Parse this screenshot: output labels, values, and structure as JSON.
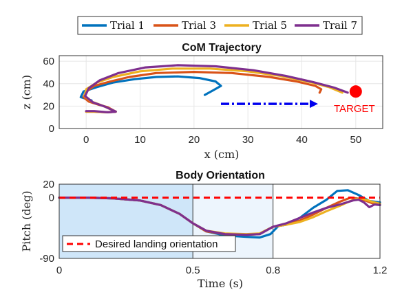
{
  "legend_top": [
    {
      "label": "Trial 1",
      "color": "#0072BD"
    },
    {
      "label": "Trial 3",
      "color": "#D95319"
    },
    {
      "label": "Trial 5",
      "color": "#EDB120"
    },
    {
      "label": "Trail 7",
      "color": "#7E2F8E"
    }
  ],
  "colors": {
    "trial1": "#0072BD",
    "trial3": "#D95319",
    "trial5": "#EDB120",
    "trial7": "#7E2F8E",
    "target": "#FF0000",
    "arrow": "#0000EE",
    "desired": "#FF0000"
  },
  "chart_data": [
    {
      "type": "line",
      "title": "CoM Trajectory",
      "xlabel": "x (cm)",
      "ylabel": "z (cm)",
      "xlim": [
        -5,
        55
      ],
      "ylim": [
        0,
        65
      ],
      "xticks": [
        "0",
        "10",
        "20",
        "30",
        "40",
        "50"
      ],
      "yticks": [
        "0",
        "20",
        "40",
        "60"
      ],
      "grid": true,
      "series": [
        {
          "name": "Trial 1",
          "color": "#0072BD",
          "x": [
            22,
            23.5,
            25,
            24,
            21,
            17,
            13,
            9,
            5,
            2,
            -0.5,
            -1,
            1
          ],
          "y": [
            30,
            34,
            38,
            42,
            45,
            46.5,
            46,
            44,
            41,
            37,
            33,
            28,
            25
          ]
        },
        {
          "name": "Trial 3",
          "color": "#D95319",
          "x": [
            43.3,
            43.6,
            42.5,
            39,
            34,
            27,
            20,
            13,
            8,
            4.5,
            1.5,
            0,
            -0.5,
            0.5,
            2.5,
            4,
            5.5,
            4,
            1.5,
            0
          ],
          "y": [
            32,
            35,
            38,
            42,
            46,
            49.5,
            50.5,
            49.5,
            46,
            42,
            38,
            33,
            28,
            24,
            21,
            19,
            15,
            14.5,
            15,
            15
          ]
        },
        {
          "name": "Trial 5",
          "color": "#EDB120",
          "x": [
            47.5,
            45,
            41,
            36,
            30,
            23,
            16,
            10,
            5,
            2,
            0,
            -0.3,
            1,
            3,
            5.5,
            4,
            1.5,
            0
          ],
          "y": [
            32,
            37,
            42,
            47,
            51,
            53.5,
            53.5,
            51,
            46,
            41,
            35,
            29,
            24,
            20.5,
            15,
            14.5,
            15,
            15
          ]
        },
        {
          "name": "Trail 7",
          "color": "#7E2F8E",
          "x": [
            48.5,
            46,
            42,
            37,
            31,
            24,
            17,
            11,
            6,
            2.5,
            0.5,
            -0.2,
            1.2,
            3.5,
            5.5,
            4,
            1.5,
            0
          ],
          "y": [
            32,
            36.5,
            41.5,
            47,
            52,
            55.5,
            56.5,
            54.5,
            49.5,
            43,
            36,
            29,
            23.5,
            19.5,
            15,
            14.5,
            15.5,
            15.5
          ]
        }
      ],
      "target": {
        "label": "TARGET",
        "x": 50,
        "y": 33
      },
      "direction_arrow": {
        "x": [
          25,
          43
        ],
        "y": 22
      }
    },
    {
      "type": "line",
      "title": "Body Orientation",
      "xlabel": "Time (s)",
      "ylabel": "Pitch (deg)",
      "xlim": [
        0,
        1.2
      ],
      "ylim": [
        -90,
        20
      ],
      "xticks": [
        "0",
        "0.5",
        "0.8",
        "1.2"
      ],
      "yticks": [
        "20",
        "0",
        "-90"
      ],
      "phase_boundaries": [
        0.5,
        0.8
      ],
      "reference_line": {
        "label": "Desired landing orientation",
        "y": 0,
        "color": "#FF0000"
      },
      "series": [
        {
          "name": "Trial 1",
          "color": "#0072BD",
          "x": [
            0,
            0.1,
            0.2,
            0.3,
            0.38,
            0.45,
            0.5,
            0.55,
            0.62,
            0.7,
            0.75,
            0.79,
            0.82,
            0.85,
            0.9,
            0.95,
            1.0,
            1.04,
            1.08,
            1.12,
            1.16,
            1.2
          ],
          "y": [
            0,
            0,
            -1,
            -4,
            -11,
            -24,
            -38,
            -50,
            -56,
            -58,
            -59,
            -54,
            -42,
            -40,
            -30,
            -15,
            -3,
            10,
            11,
            4,
            -5,
            -7
          ]
        },
        {
          "name": "Trial 3",
          "color": "#D95319",
          "x": [
            0,
            0.1,
            0.2,
            0.3,
            0.38,
            0.45,
            0.5,
            0.55,
            0.62,
            0.7,
            0.75,
            0.8,
            0.85,
            0.9,
            0.95,
            1.0,
            1.05,
            1.09,
            1.13,
            1.17,
            1.2
          ],
          "y": [
            0,
            0,
            -1,
            -4,
            -11,
            -24,
            -38,
            -50,
            -54,
            -55,
            -54,
            -43,
            -40,
            -34,
            -25,
            -15,
            -6,
            0,
            -2,
            -8,
            -10
          ]
        },
        {
          "name": "Trial 5",
          "color": "#EDB120",
          "x": [
            0,
            0.1,
            0.2,
            0.3,
            0.38,
            0.45,
            0.5,
            0.55,
            0.62,
            0.7,
            0.75,
            0.8,
            0.85,
            0.9,
            0.95,
            1.0,
            1.05,
            1.1,
            1.13,
            1.17,
            1.2
          ],
          "y": [
            0,
            0,
            -1,
            -4,
            -11,
            -24,
            -38,
            -49,
            -53,
            -54,
            -53,
            -43,
            -40,
            -36,
            -29,
            -20,
            -12,
            -3,
            -1,
            -6,
            -9
          ]
        },
        {
          "name": "Trail 7",
          "color": "#7E2F8E",
          "x": [
            0,
            0.1,
            0.2,
            0.3,
            0.38,
            0.45,
            0.5,
            0.55,
            0.62,
            0.7,
            0.75,
            0.8,
            0.85,
            0.9,
            0.95,
            1.0,
            1.05,
            1.1,
            1.12,
            1.14,
            1.16,
            1.18,
            1.2
          ],
          "y": [
            0,
            0,
            -1,
            -4,
            -11,
            -24,
            -38,
            -49,
            -54,
            -55,
            -54,
            -43,
            -38,
            -30,
            -22,
            -15,
            -10,
            -4,
            -3,
            -7,
            -14,
            -10,
            -11
          ]
        }
      ]
    }
  ]
}
